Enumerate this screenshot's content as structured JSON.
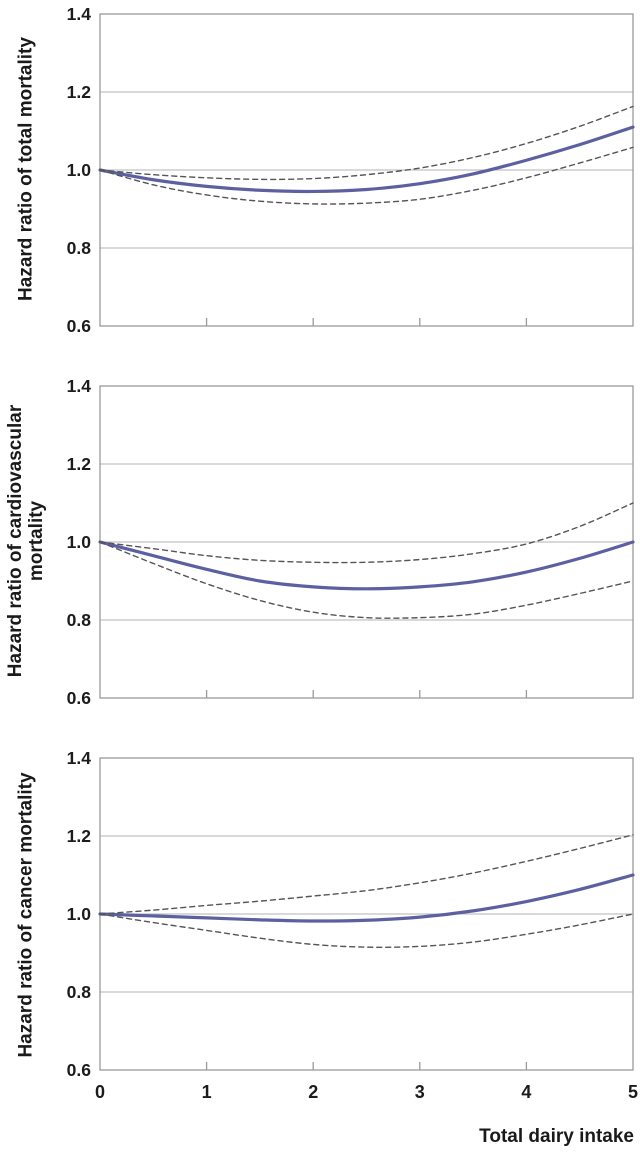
{
  "style": {
    "grid_color": "#b3b3b3",
    "border_color": "#9a9a9a",
    "tick_text_color": "#1c1c1c",
    "main_line_color": "#5d60a0",
    "ci_line_color": "#555555"
  },
  "chart_data": [
    {
      "type": "line",
      "title": "",
      "ylabel": "Hazard ratio of total mortality",
      "xlabel": "",
      "ylim": [
        0.6,
        1.4
      ],
      "xlim": [
        0,
        5
      ],
      "grid": true,
      "legend": "none",
      "y_ticks": [
        {
          "value": 0.6,
          "label": "0.6"
        },
        {
          "value": 0.8,
          "label": "0.8"
        },
        {
          "value": 1.0,
          "label": "1.0"
        },
        {
          "value": 1.2,
          "label": "1.2"
        },
        {
          "value": 1.4,
          "label": "1.4"
        }
      ],
      "gridlines_y": [
        0.8,
        1.0,
        1.2
      ],
      "x_ticks": [
        0,
        1,
        2,
        3,
        4,
        5
      ],
      "x_tick_labels": [
        "0",
        "1",
        "2",
        "3",
        "4",
        "5"
      ],
      "show_x_tick_labels": false,
      "x": [
        0,
        0.5,
        1,
        1.5,
        2,
        2.5,
        3,
        3.5,
        4,
        4.5,
        5
      ],
      "series": [
        {
          "name": "hazard-ratio",
          "style": "solid",
          "color": "#5d60a0",
          "values": [
            1.0,
            0.975,
            0.958,
            0.948,
            0.945,
            0.95,
            0.965,
            0.99,
            1.025,
            1.065,
            1.11
          ]
        },
        {
          "name": "upper-95ci",
          "style": "dashed",
          "color": "#555555",
          "values": [
            1.0,
            0.988,
            0.98,
            0.976,
            0.978,
            0.988,
            1.005,
            1.032,
            1.068,
            1.112,
            1.163
          ]
        },
        {
          "name": "lower-95ci",
          "style": "dashed",
          "color": "#555555",
          "values": [
            1.0,
            0.962,
            0.936,
            0.92,
            0.913,
            0.915,
            0.925,
            0.948,
            0.98,
            1.018,
            1.058
          ]
        }
      ]
    },
    {
      "type": "line",
      "title": "",
      "ylabel": "Hazard ratio of cardiovascular mortality",
      "xlabel": "",
      "ylim": [
        0.6,
        1.4
      ],
      "xlim": [
        0,
        5
      ],
      "grid": true,
      "legend": "none",
      "y_ticks": [
        {
          "value": 0.6,
          "label": "0.6"
        },
        {
          "value": 0.8,
          "label": "0.8"
        },
        {
          "value": 1.0,
          "label": "1.0"
        },
        {
          "value": 1.2,
          "label": "1.2"
        },
        {
          "value": 1.4,
          "label": "1.4"
        }
      ],
      "gridlines_y": [
        0.8,
        1.0,
        1.2
      ],
      "x_ticks": [
        0,
        1,
        2,
        3,
        4,
        5
      ],
      "x_tick_labels": [
        "0",
        "1",
        "2",
        "3",
        "4",
        "5"
      ],
      "show_x_tick_labels": false,
      "x": [
        0,
        0.5,
        1,
        1.5,
        2,
        2.5,
        3,
        3.5,
        4,
        4.5,
        5
      ],
      "series": [
        {
          "name": "hazard-ratio",
          "style": "solid",
          "color": "#5d60a0",
          "values": [
            1.0,
            0.965,
            0.93,
            0.9,
            0.885,
            0.88,
            0.885,
            0.898,
            0.923,
            0.958,
            1.0
          ]
        },
        {
          "name": "upper-95ci",
          "style": "dashed",
          "color": "#555555",
          "values": [
            1.0,
            0.983,
            0.965,
            0.953,
            0.948,
            0.948,
            0.955,
            0.97,
            0.995,
            1.04,
            1.1
          ]
        },
        {
          "name": "lower-95ci",
          "style": "dashed",
          "color": "#555555",
          "values": [
            1.0,
            0.945,
            0.893,
            0.85,
            0.82,
            0.806,
            0.806,
            0.815,
            0.838,
            0.868,
            0.9
          ]
        }
      ]
    },
    {
      "type": "line",
      "title": "",
      "ylabel": "Hazard ratio of cancer mortality",
      "xlabel": "Total dairy intake",
      "ylim": [
        0.6,
        1.4
      ],
      "xlim": [
        0,
        5
      ],
      "grid": true,
      "legend": "none",
      "y_ticks": [
        {
          "value": 0.6,
          "label": "0.6"
        },
        {
          "value": 0.8,
          "label": "0.8"
        },
        {
          "value": 1.0,
          "label": "1.0"
        },
        {
          "value": 1.2,
          "label": "1.2"
        },
        {
          "value": 1.4,
          "label": "1.4"
        }
      ],
      "gridlines_y": [
        0.8,
        1.0,
        1.2
      ],
      "x_ticks": [
        0,
        1,
        2,
        3,
        4,
        5
      ],
      "x_tick_labels": [
        "0",
        "1",
        "2",
        "3",
        "4",
        "5"
      ],
      "show_x_tick_labels": true,
      "x": [
        0,
        0.5,
        1,
        1.5,
        2,
        2.5,
        3,
        3.5,
        4,
        4.5,
        5
      ],
      "series": [
        {
          "name": "hazard-ratio",
          "style": "solid",
          "color": "#5d60a0",
          "values": [
            1.0,
            0.995,
            0.99,
            0.985,
            0.982,
            0.984,
            0.992,
            1.008,
            1.032,
            1.063,
            1.1
          ]
        },
        {
          "name": "upper-95ci",
          "style": "dashed",
          "color": "#555555",
          "values": [
            1.0,
            1.01,
            1.022,
            1.033,
            1.046,
            1.06,
            1.08,
            1.105,
            1.135,
            1.168,
            1.203
          ]
        },
        {
          "name": "lower-95ci",
          "style": "dashed",
          "color": "#555555",
          "values": [
            1.0,
            0.978,
            0.958,
            0.938,
            0.922,
            0.915,
            0.917,
            0.928,
            0.948,
            0.972,
            1.0
          ]
        }
      ]
    }
  ]
}
